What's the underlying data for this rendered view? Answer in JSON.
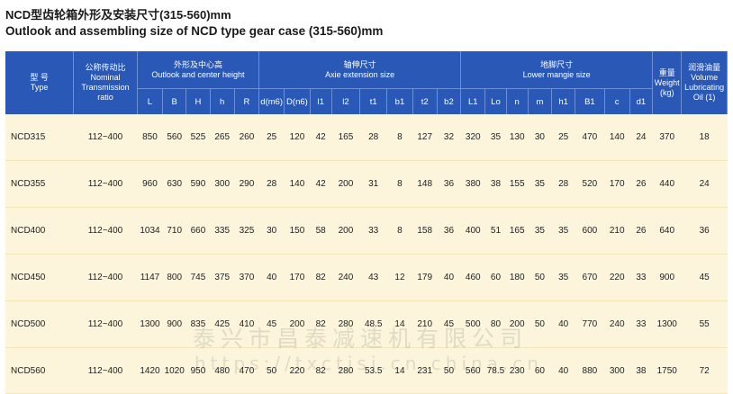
{
  "title": {
    "cn": "NCD型齿轮箱外形及安装尺寸(315-560)mm",
    "en": "Outlook and assembling size of NCD type gear case (315-560)mm"
  },
  "groups": {
    "type": {
      "cn": "型 号",
      "en": "Type"
    },
    "ratio": {
      "cn": "公称传动比",
      "en1": "Nominal",
      "en2": "Transmission",
      "en3": "ratio"
    },
    "outlook": {
      "cn": "外形及中心高",
      "en": "Outlook and center height"
    },
    "axie": {
      "cn": "轴伸尺寸",
      "en": "Axie extension size"
    },
    "lower": {
      "cn": "地脚尺寸",
      "en": "Lower mangie size"
    },
    "weight": {
      "cn": "重量",
      "en1": "Weight",
      "en2": "(kg)"
    },
    "oil": {
      "cn": "润滑油量",
      "en1": "Volume",
      "en2": "Lubricating",
      "en3": "Oil (1)"
    }
  },
  "columns": [
    "L",
    "B",
    "H",
    "h",
    "R",
    "d(m6)",
    "D(n6)",
    "l1",
    "l2",
    "t1",
    "b1",
    "t2",
    "b2",
    "L1",
    "Lo",
    "n",
    "m",
    "h1",
    "B1",
    "c",
    "d1"
  ],
  "rows": [
    [
      "NCD315",
      "112~400",
      "850",
      "560",
      "525",
      "265",
      "260",
      "25",
      "120",
      "42",
      "165",
      "28",
      "8",
      "127",
      "32",
      "320",
      "35",
      "130",
      "30",
      "25",
      "470",
      "140",
      "24",
      "370",
      "18"
    ],
    [
      "NCD355",
      "112~400",
      "960",
      "630",
      "590",
      "300",
      "290",
      "28",
      "140",
      "42",
      "200",
      "31",
      "8",
      "148",
      "36",
      "380",
      "38",
      "155",
      "35",
      "28",
      "520",
      "170",
      "26",
      "440",
      "24"
    ],
    [
      "NCD400",
      "112~400",
      "1034",
      "710",
      "660",
      "335",
      "325",
      "30",
      "150",
      "58",
      "200",
      "33",
      "8",
      "158",
      "36",
      "400",
      "51",
      "165",
      "35",
      "35",
      "600",
      "210",
      "26",
      "640",
      "36"
    ],
    [
      "NCD450",
      "112~400",
      "1147",
      "800",
      "745",
      "375",
      "370",
      "40",
      "170",
      "82",
      "240",
      "43",
      "12",
      "179",
      "40",
      "460",
      "60",
      "180",
      "50",
      "35",
      "670",
      "220",
      "33",
      "900",
      "45"
    ],
    [
      "NCD500",
      "112~400",
      "1300",
      "900",
      "835",
      "425",
      "410",
      "45",
      "200",
      "82",
      "280",
      "48.5",
      "14",
      "210",
      "45",
      "500",
      "80",
      "200",
      "50",
      "40",
      "770",
      "240",
      "33",
      "1300",
      "55"
    ],
    [
      "NCD560",
      "112~400",
      "1420",
      "1020",
      "950",
      "480",
      "470",
      "50",
      "220",
      "82",
      "280",
      "53.5",
      "14",
      "231",
      "50",
      "560",
      "78.5",
      "230",
      "60",
      "40",
      "880",
      "300",
      "38",
      "1750",
      "72"
    ]
  ],
  "watermark": {
    "cn": "泰兴市昌泰减速机有限公司",
    "url": "https://txctjsj.cn.china.cn"
  }
}
